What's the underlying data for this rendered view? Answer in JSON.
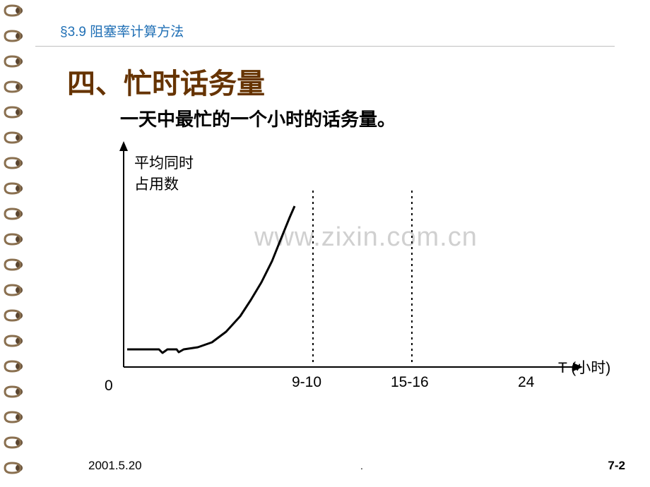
{
  "header": {
    "section": "§3.9 阻塞率计算方法"
  },
  "title": {
    "main": "四、忙时话务量",
    "sub": "一天中最忙的一个小时的话务量。"
  },
  "watermark": "www.zixin.com.cn",
  "chart": {
    "type": "line",
    "y_label_line1": "平均同时",
    "y_label_line2": "占用数",
    "x_label": "T (小时)",
    "x_origin": "0",
    "x_ticks": [
      "9-10",
      "15-16",
      "24"
    ],
    "x_tick_positions": [
      260,
      400,
      580
    ],
    "axis_color": "#000000",
    "axis_width": 2,
    "curve_color": "#000000",
    "curve_width": 3,
    "dashed_color": "#000000",
    "dashed_width": 2,
    "background_color": "#ffffff",
    "curve_points": [
      [
        5,
        295
      ],
      [
        50,
        295
      ],
      [
        55,
        300
      ],
      [
        62,
        295
      ],
      [
        75,
        295
      ],
      [
        78,
        299
      ],
      [
        85,
        295
      ],
      [
        105,
        292
      ],
      [
        125,
        285
      ],
      [
        145,
        270
      ],
      [
        165,
        248
      ],
      [
        180,
        225
      ],
      [
        195,
        200
      ],
      [
        210,
        170
      ],
      [
        222,
        140
      ],
      [
        235,
        108
      ],
      [
        242,
        92
      ]
    ],
    "dashed_line_x": [
      268,
      408
    ],
    "dashed_y_start": 70,
    "dashed_y_end": 315,
    "axis_origin": [
      0,
      320
    ],
    "x_axis_end": 640,
    "y_axis_end": 0
  },
  "footer": {
    "date": "2001.5.20",
    "dot": ".",
    "page": "7-2"
  },
  "spiral": {
    "count": 19,
    "spacing": 36,
    "start_y": 6,
    "ring_color": "#8a7050",
    "hole_color": "#5a4530"
  }
}
